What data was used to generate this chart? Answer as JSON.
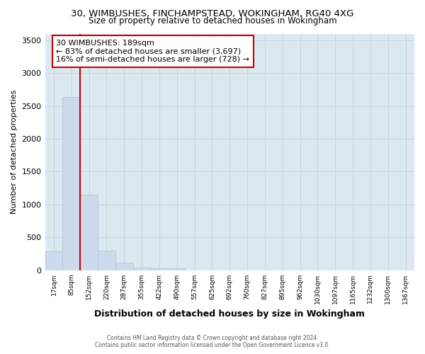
{
  "title1": "30, WIMBUSHES, FINCHAMPSTEAD, WOKINGHAM, RG40 4XG",
  "title2": "Size of property relative to detached houses in Wokingham",
  "xlabel": "Distribution of detached houses by size in Wokingham",
  "ylabel": "Number of detached properties",
  "categories": [
    "17sqm",
    "85sqm",
    "152sqm",
    "220sqm",
    "287sqm",
    "355sqm",
    "422sqm",
    "490sqm",
    "557sqm",
    "625sqm",
    "692sqm",
    "760sqm",
    "827sqm",
    "895sqm",
    "962sqm",
    "1030sqm",
    "1097sqm",
    "1165sqm",
    "1232sqm",
    "1300sqm",
    "1367sqm"
  ],
  "values": [
    285,
    2640,
    1150,
    295,
    120,
    40,
    25,
    30,
    0,
    0,
    0,
    0,
    0,
    0,
    0,
    0,
    0,
    0,
    0,
    0,
    0
  ],
  "bar_color": "#ccdaeb",
  "bar_edge_color": "#b0c8dc",
  "grid_color": "#c8d4de",
  "annotation_text": "30 WIMBUSHES: 189sqm\n← 83% of detached houses are smaller (3,697)\n16% of semi-detached houses are larger (728) →",
  "vline_x": 1.5,
  "vline_color": "#cc0000",
  "annotation_box_color": "#ffffff",
  "annotation_box_edge": "#cc0000",
  "ylim": [
    0,
    3600
  ],
  "yticks": [
    0,
    500,
    1000,
    1500,
    2000,
    2500,
    3000,
    3500
  ],
  "footer1": "Contains HM Land Registry data © Crown copyright and database right 2024.",
  "footer2": "Contains public sector information licensed under the Open Government Licence v3.0.",
  "bg_color": "#ffffff",
  "plot_bg_color": "#dce8f0"
}
